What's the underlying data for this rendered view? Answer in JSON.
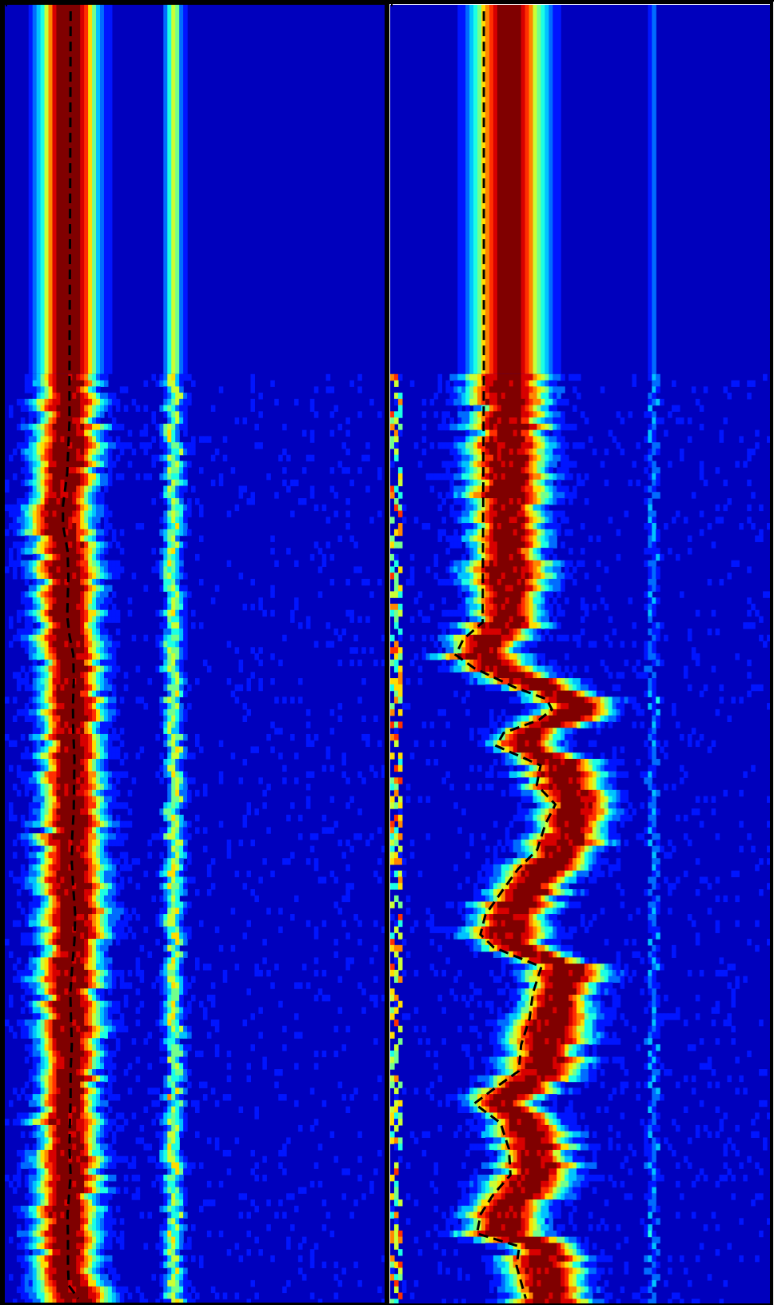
{
  "chart_data": [
    {
      "type": "heatmap",
      "panel": "left",
      "colormap": "jet",
      "colors": {
        "low": "#0000f0",
        "mid": "#00ffff",
        "high": "#ff0000"
      },
      "y_units": "row",
      "y_range": [
        0,
        100
      ],
      "reference_line_style": "dashed",
      "static_rows_end": 28.4,
      "bands": [
        {
          "center": 16.9,
          "core_halfwidth": 2.0,
          "width": 8.0
        },
        {
          "center": 44.4,
          "core_halfwidth": 0,
          "width": 3.0,
          "peak": 0.55
        }
      ],
      "tracked_curve": {
        "y": [
          0.5,
          10,
          20,
          28.4,
          32,
          36,
          38.5,
          40,
          42,
          44,
          47,
          48.5,
          50,
          52,
          54,
          56,
          58,
          60,
          62,
          64,
          66,
          68,
          70,
          72,
          74,
          76,
          78,
          80,
          82,
          84,
          86,
          88,
          90,
          91.5,
          93,
          95,
          97,
          98.5,
          99.5
        ],
        "x": [
          17.3,
          17.2,
          17.1,
          17.0,
          17.0,
          16.4,
          15.3,
          15.3,
          16.5,
          16.7,
          16.4,
          17.0,
          18.0,
          18.1,
          17.9,
          18.0,
          18.3,
          18.2,
          18.1,
          17.7,
          17.6,
          18.0,
          18.5,
          18.3,
          17.7,
          17.2,
          17.4,
          17.6,
          17.3,
          17.3,
          17.1,
          17.0,
          17.3,
          16.9,
          16.5,
          16.6,
          16.6,
          16.8,
          19.3
        ]
      }
    },
    {
      "type": "heatmap",
      "panel": "right",
      "colormap": "jet",
      "colors": {
        "low": "#0000f0",
        "mid": "#00ffff",
        "high": "#ff0000"
      },
      "y_units": "row",
      "y_range": [
        0,
        100
      ],
      "reference_line_style": "dashed",
      "static_rows_end": 28.4,
      "bands": [
        {
          "center": 31.2,
          "core_halfwidth": 2.2,
          "width": 10.0
        },
        {
          "center": 69.0,
          "core_halfwidth": 0,
          "width": 1.3,
          "peak": 0.25
        }
      ],
      "tracked_curve": {
        "y": [
          0.5,
          10,
          20,
          28.4,
          35,
          42,
          47.5,
          48.8,
          50.0,
          51.0,
          52.5,
          53.4,
          54.2,
          55.0,
          56.0,
          57.0,
          58.5,
          60,
          61.5,
          63,
          65,
          66.5,
          68,
          70,
          71.5,
          72.5,
          74,
          76,
          78,
          80,
          82,
          83,
          84.5,
          86,
          88,
          90,
          91.5,
          93,
          94.5,
          95.5,
          97,
          99.5
        ],
        "x": [
          24.6,
          24.6,
          24.6,
          24.6,
          24.5,
          24.4,
          24.3,
          19.2,
          17.2,
          22.0,
          32.8,
          41.1,
          42.5,
          39.1,
          29.8,
          27.9,
          39.5,
          38.5,
          43.4,
          40.8,
          38.6,
          33.5,
          29.8,
          25.0,
          23.7,
          27.2,
          39.7,
          37.5,
          36.6,
          34.4,
          33.8,
          29.0,
          22.1,
          29.0,
          31.2,
          31.6,
          27.1,
          23.8,
          22.8,
          33.9,
          33.2,
          35.6
        ]
      }
    }
  ]
}
